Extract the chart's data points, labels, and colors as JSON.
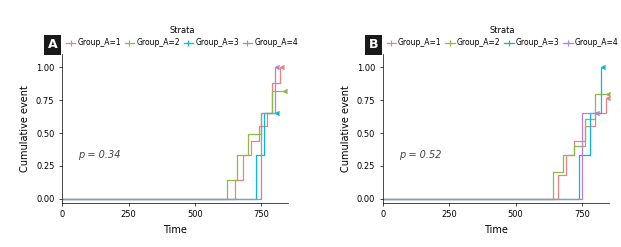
{
  "panel_A": {
    "title": "A",
    "p_value": "p = 0.34",
    "xlabel": "Time",
    "ylabel": "Cumulative event",
    "xlim": [
      0,
      850
    ],
    "ylim": [
      -0.03,
      1.1
    ],
    "xticks": [
      0,
      250,
      500,
      750
    ],
    "yticks": [
      0.0,
      0.25,
      0.5,
      0.75,
      1.0
    ],
    "groups": {
      "Group_A=1": {
        "color": "#F08080",
        "times": [
          0,
          620,
          650,
          680,
          710,
          740,
          770,
          790,
          820
        ],
        "values": [
          0.0,
          0.0,
          0.14,
          0.33,
          0.44,
          0.55,
          0.65,
          0.88,
          1.0
        ]
      },
      "Group_A=2": {
        "color": "#8DB84A",
        "times": [
          0,
          590,
          620,
          660,
          700,
          750,
          790,
          830
        ],
        "values": [
          0.0,
          0.0,
          0.14,
          0.33,
          0.49,
          0.65,
          0.82,
          0.82
        ]
      },
      "Group_A=3": {
        "color": "#00BCD4",
        "times": [
          0,
          700,
          730,
          760,
          800
        ],
        "values": [
          0.0,
          0.0,
          0.33,
          0.65,
          0.65
        ]
      },
      "Group_A=4": {
        "color": "#BA7FD0",
        "times": [
          0,
          690,
          750,
          800
        ],
        "values": [
          0.0,
          0.0,
          0.65,
          1.0
        ]
      }
    }
  },
  "panel_B": {
    "title": "B",
    "p_value": "p = 0.52",
    "xlabel": "Time",
    "ylabel": "Cumulative event",
    "xlim": [
      0,
      850
    ],
    "ylim": [
      -0.03,
      1.1
    ],
    "xticks": [
      0,
      250,
      500,
      750
    ],
    "yticks": [
      0.0,
      0.25,
      0.5,
      0.75,
      1.0
    ],
    "groups": {
      "Group_A=1": {
        "color": "#F08080",
        "times": [
          0,
          630,
          660,
          690,
          720,
          760,
          800,
          840
        ],
        "values": [
          0.0,
          0.0,
          0.18,
          0.33,
          0.44,
          0.55,
          0.65,
          0.77
        ]
      },
      "Group_A=2": {
        "color": "#8DB84A",
        "times": [
          0,
          600,
          640,
          680,
          720,
          760,
          800,
          840
        ],
        "values": [
          0.0,
          0.0,
          0.2,
          0.33,
          0.4,
          0.61,
          0.8,
          0.8
        ]
      },
      "Group_A=3": {
        "color": "#00BCD4",
        "times": [
          0,
          710,
          740,
          780,
          820
        ],
        "values": [
          0.0,
          0.0,
          0.33,
          0.65,
          1.0
        ]
      },
      "Group_A=4": {
        "color": "#BA7FD0",
        "times": [
          0,
          680,
          750,
          800
        ],
        "values": [
          0.0,
          0.0,
          0.65,
          0.65
        ]
      }
    }
  },
  "legend_title": "Strata",
  "legend_groups": [
    "Group_A=1",
    "Group_A=2",
    "Group_A=3",
    "Group_A=4"
  ],
  "colors": {
    "Group_A=1": "#F08080",
    "Group_A=2": "#8DB84A",
    "Group_A=3": "#00BCD4",
    "Group_A=4": "#BA7FD0"
  },
  "background": "#FFFFFF",
  "label_box_color": "#1a1a1a",
  "label_text_color": "#FFFFFF",
  "label_fontsize": 9,
  "axis_fontsize": 7,
  "tick_fontsize": 6,
  "legend_fontsize": 5.5,
  "legend_title_fontsize": 6,
  "pvalue_fontsize": 7
}
